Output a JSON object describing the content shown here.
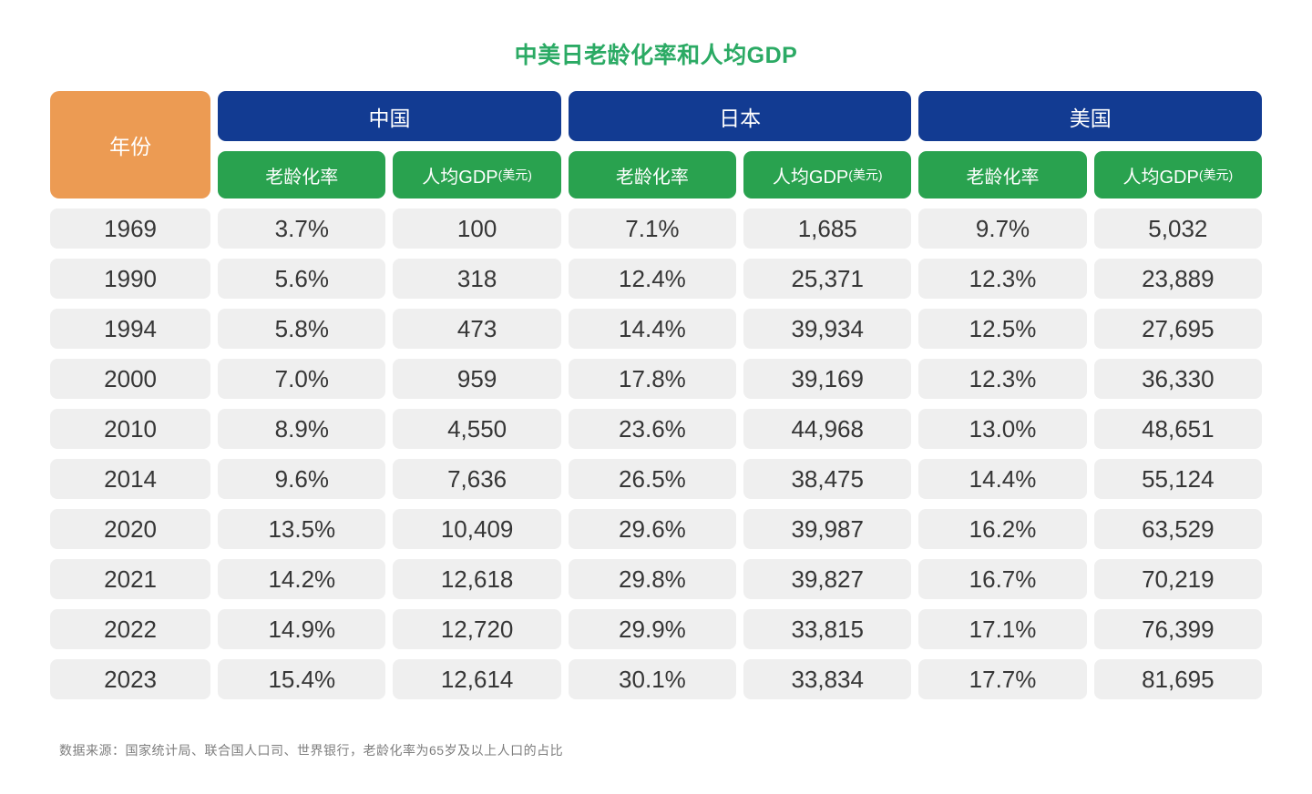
{
  "title": "中美日老龄化率和人均GDP",
  "colors": {
    "year_header_bg": "#EC9B53",
    "country_header_bg": "#123B92",
    "subheader_bg": "#29A24F",
    "title_text": "#2BAA64",
    "cell_bg": "#EFEFEF",
    "cell_text": "#363636",
    "header_text": "#FFFFFF",
    "note_text": "#7D7D7D",
    "page_bg": "#FFFFFF"
  },
  "table": {
    "year_header": "年份",
    "groups": [
      {
        "key": "china",
        "country": "中国",
        "aging_label": "老龄化率",
        "gdp_label": "人均GDP",
        "gdp_unit": "(美元)"
      },
      {
        "key": "japan",
        "country": "日本",
        "aging_label": "老龄化率",
        "gdp_label": "人均GDP",
        "gdp_unit": "(美元)"
      },
      {
        "key": "usa",
        "country": "美国",
        "aging_label": "老龄化率",
        "gdp_label": "人均GDP",
        "gdp_unit": "(美元)"
      }
    ],
    "rows": [
      {
        "year": "1969",
        "values": [
          "3.7%",
          "100",
          "7.1%",
          "1,685",
          "9.7%",
          "5,032"
        ]
      },
      {
        "year": "1990",
        "values": [
          "5.6%",
          "318",
          "12.4%",
          "25,371",
          "12.3%",
          "23,889"
        ]
      },
      {
        "year": "1994",
        "values": [
          "5.8%",
          "473",
          "14.4%",
          "39,934",
          "12.5%",
          "27,695"
        ]
      },
      {
        "year": "2000",
        "values": [
          "7.0%",
          "959",
          "17.8%",
          "39,169",
          "12.3%",
          "36,330"
        ]
      },
      {
        "year": "2010",
        "values": [
          "8.9%",
          "4,550",
          "23.6%",
          "44,968",
          "13.0%",
          "48,651"
        ]
      },
      {
        "year": "2014",
        "values": [
          "9.6%",
          "7,636",
          "26.5%",
          "38,475",
          "14.4%",
          "55,124"
        ]
      },
      {
        "year": "2020",
        "values": [
          "13.5%",
          "10,409",
          "29.6%",
          "39,987",
          "16.2%",
          "63,529"
        ]
      },
      {
        "year": "2021",
        "values": [
          "14.2%",
          "12,618",
          "29.8%",
          "39,827",
          "16.7%",
          "70,219"
        ]
      },
      {
        "year": "2022",
        "values": [
          "14.9%",
          "12,720",
          "29.9%",
          "33,815",
          "17.1%",
          "76,399"
        ]
      },
      {
        "year": "2023",
        "values": [
          "15.4%",
          "12,614",
          "30.1%",
          "33,834",
          "17.7%",
          "81,695"
        ]
      }
    ]
  },
  "footer": "数据来源：国家统计局、联合国人口司、世界银行，老龄化率为65岁及以上人口的占比",
  "chart_data": {
    "type": "table",
    "title": "中美日老龄化率和人均GDP",
    "columns": [
      "年份",
      "中国 老龄化率",
      "中国 人均GDP(美元)",
      "日本 老龄化率",
      "日本 人均GDP(美元)",
      "美国 老龄化率",
      "美国 人均GDP(美元)"
    ],
    "x": [
      "1969",
      "1990",
      "1994",
      "2000",
      "2010",
      "2014",
      "2020",
      "2021",
      "2022",
      "2023"
    ],
    "rows": [
      [
        "1969",
        "3.7%",
        "100",
        "7.1%",
        "1,685",
        "9.7%",
        "5,032"
      ],
      [
        "1990",
        "5.6%",
        "318",
        "12.4%",
        "25,371",
        "12.3%",
        "23,889"
      ],
      [
        "1994",
        "5.8%",
        "473",
        "14.4%",
        "39,934",
        "12.5%",
        "27,695"
      ],
      [
        "2000",
        "7.0%",
        "959",
        "17.8%",
        "39,169",
        "12.3%",
        "36,330"
      ],
      [
        "2010",
        "8.9%",
        "4,550",
        "23.6%",
        "44,968",
        "13.0%",
        "48,651"
      ],
      [
        "2014",
        "9.6%",
        "7,636",
        "26.5%",
        "38,475",
        "14.4%",
        "55,124"
      ],
      [
        "2020",
        "13.5%",
        "10,409",
        "29.6%",
        "39,987",
        "16.2%",
        "63,529"
      ],
      [
        "2021",
        "14.2%",
        "12,618",
        "29.8%",
        "39,827",
        "16.7%",
        "70,219"
      ],
      [
        "2022",
        "14.9%",
        "12,720",
        "29.9%",
        "33,815",
        "17.1%",
        "76,399"
      ],
      [
        "2023",
        "15.4%",
        "12,614",
        "30.1%",
        "33,834",
        "17.7%",
        "81,695"
      ]
    ],
    "series": [
      {
        "name": "中国 老龄化率(%)",
        "values": [
          3.7,
          5.6,
          5.8,
          7.0,
          8.9,
          9.6,
          13.5,
          14.2,
          14.9,
          15.4
        ]
      },
      {
        "name": "中国 人均GDP(美元)",
        "values": [
          100,
          318,
          473,
          959,
          4550,
          7636,
          10409,
          12618,
          12720,
          12614
        ]
      },
      {
        "name": "日本 老龄化率(%)",
        "values": [
          7.1,
          12.4,
          14.4,
          17.8,
          23.6,
          26.5,
          29.6,
          29.8,
          29.9,
          30.1
        ]
      },
      {
        "name": "日本 人均GDP(美元)",
        "values": [
          1685,
          25371,
          39934,
          39169,
          44968,
          38475,
          39987,
          39827,
          33815,
          33834
        ]
      },
      {
        "name": "美国 老龄化率(%)",
        "values": [
          9.7,
          12.3,
          12.5,
          12.3,
          13.0,
          14.4,
          16.2,
          16.7,
          17.1,
          17.7
        ]
      },
      {
        "name": "美国 人均GDP(美元)",
        "values": [
          5032,
          23889,
          27695,
          36330,
          48651,
          55124,
          63529,
          70219,
          76399,
          81695
        ]
      }
    ],
    "source_note": "数据来源：国家统计局、联合国人口司、世界银行，老龄化率为65岁及以上人口的占比"
  }
}
